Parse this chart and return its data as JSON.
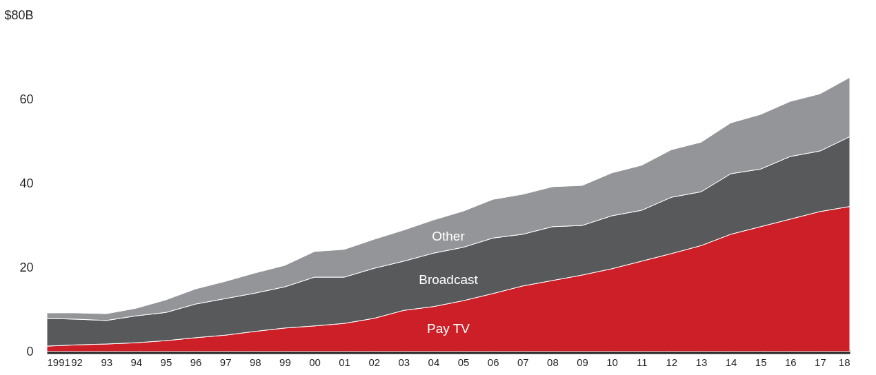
{
  "chart_data": {
    "type": "area",
    "stacked": true,
    "categories": [
      "1991",
      "92",
      "93",
      "94",
      "95",
      "96",
      "97",
      "98",
      "99",
      "00",
      "01",
      "02",
      "03",
      "04",
      "05",
      "06",
      "07",
      "08",
      "09",
      "10",
      "11",
      "12",
      "13",
      "14",
      "15",
      "16",
      "17",
      "18"
    ],
    "series": [
      {
        "name": "Pay TV",
        "color": "#cc1f27",
        "values": [
          1.3,
          1.6,
          1.8,
          2.1,
          2.6,
          3.3,
          3.9,
          4.8,
          5.6,
          6.1,
          6.7,
          7.9,
          9.8,
          10.7,
          12.1,
          13.8,
          15.6,
          16.9,
          18.2,
          19.7,
          21.5,
          23.3,
          25.2,
          27.9,
          29.7,
          31.5,
          33.3,
          34.5
        ]
      },
      {
        "name": "Broadcast",
        "color": "#58595b",
        "values": [
          6.6,
          6.1,
          5.6,
          6.4,
          6.7,
          8.0,
          8.7,
          9.1,
          9.8,
          11.6,
          11.0,
          11.9,
          11.7,
          12.7,
          12.7,
          13.2,
          12.3,
          12.8,
          11.8,
          12.6,
          12.1,
          13.4,
          12.8,
          14.4,
          13.7,
          14.9,
          14.4,
          16.6
        ]
      },
      {
        "name": "Other",
        "color": "#939598",
        "values": [
          1.3,
          1.5,
          1.6,
          1.8,
          3.0,
          3.6,
          4.1,
          4.8,
          5.1,
          6.1,
          6.6,
          6.9,
          7.4,
          7.9,
          8.6,
          9.2,
          9.5,
          9.5,
          9.5,
          10.2,
          10.7,
          11.3,
          11.8,
          12.1,
          13.0,
          13.1,
          13.6,
          14.1
        ]
      }
    ],
    "ylim": [
      0,
      80
    ],
    "yticks": [
      0,
      20,
      40,
      60,
      {
        "value": 80,
        "label": "$80B"
      }
    ],
    "grid": false,
    "legend": false
  }
}
